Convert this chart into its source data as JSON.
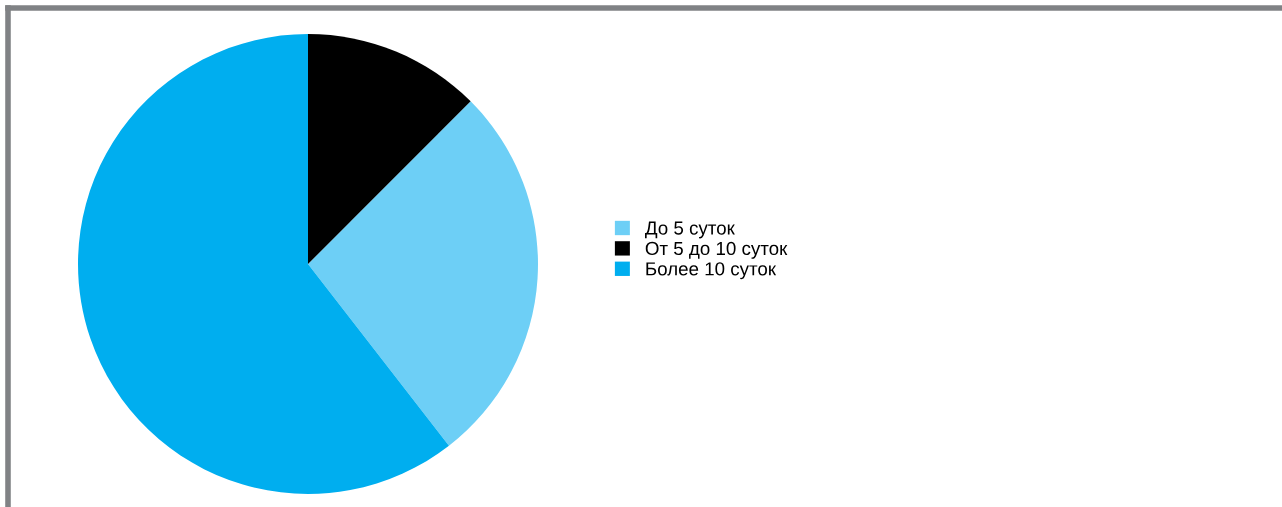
{
  "chart_data": {
    "type": "pie",
    "categories": [
      "До 5 суток",
      "От 5 до 10 суток",
      "Более 10 суток"
    ],
    "values": [
      27,
      12.5,
      60.5
    ],
    "colors": [
      "#6dcff6",
      "#000000",
      "#00aeef"
    ],
    "legend": "right"
  }
}
